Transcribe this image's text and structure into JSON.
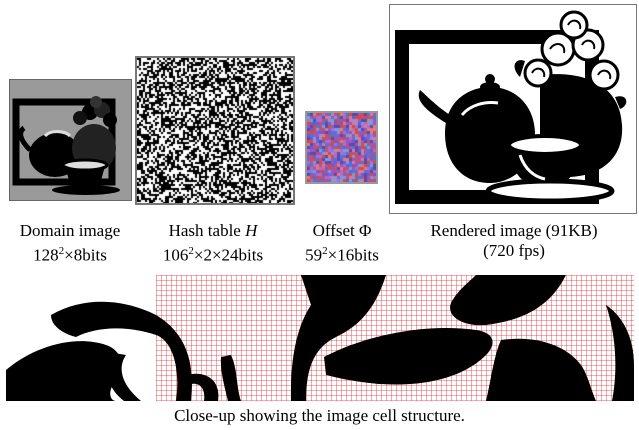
{
  "panels": {
    "domain": {
      "label_line1": "Domain image",
      "label_line2_base": "128",
      "label_line2_exp": "2",
      "label_line2_rest": "×8bits"
    },
    "hash": {
      "label_line1_text": "Hash table ",
      "label_line1_var": "H",
      "label_line2_base": "106",
      "label_line2_exp": "2",
      "label_line2_rest": "×2×24bits"
    },
    "offset": {
      "label_line1": "Offset Φ",
      "label_line2_base": "59",
      "label_line2_exp": "2",
      "label_line2_rest": "×16bits"
    },
    "rendered": {
      "label_line1": "Rendered image (91KB)",
      "label_line2": "(720 fps)"
    }
  },
  "closeup": {
    "caption": "Close-up showing the image cell structure.",
    "grid_color": "#e8242c"
  },
  "colors": {
    "domain_bg": "#9a9a9a",
    "offset_bg": "#8a5fb8"
  }
}
